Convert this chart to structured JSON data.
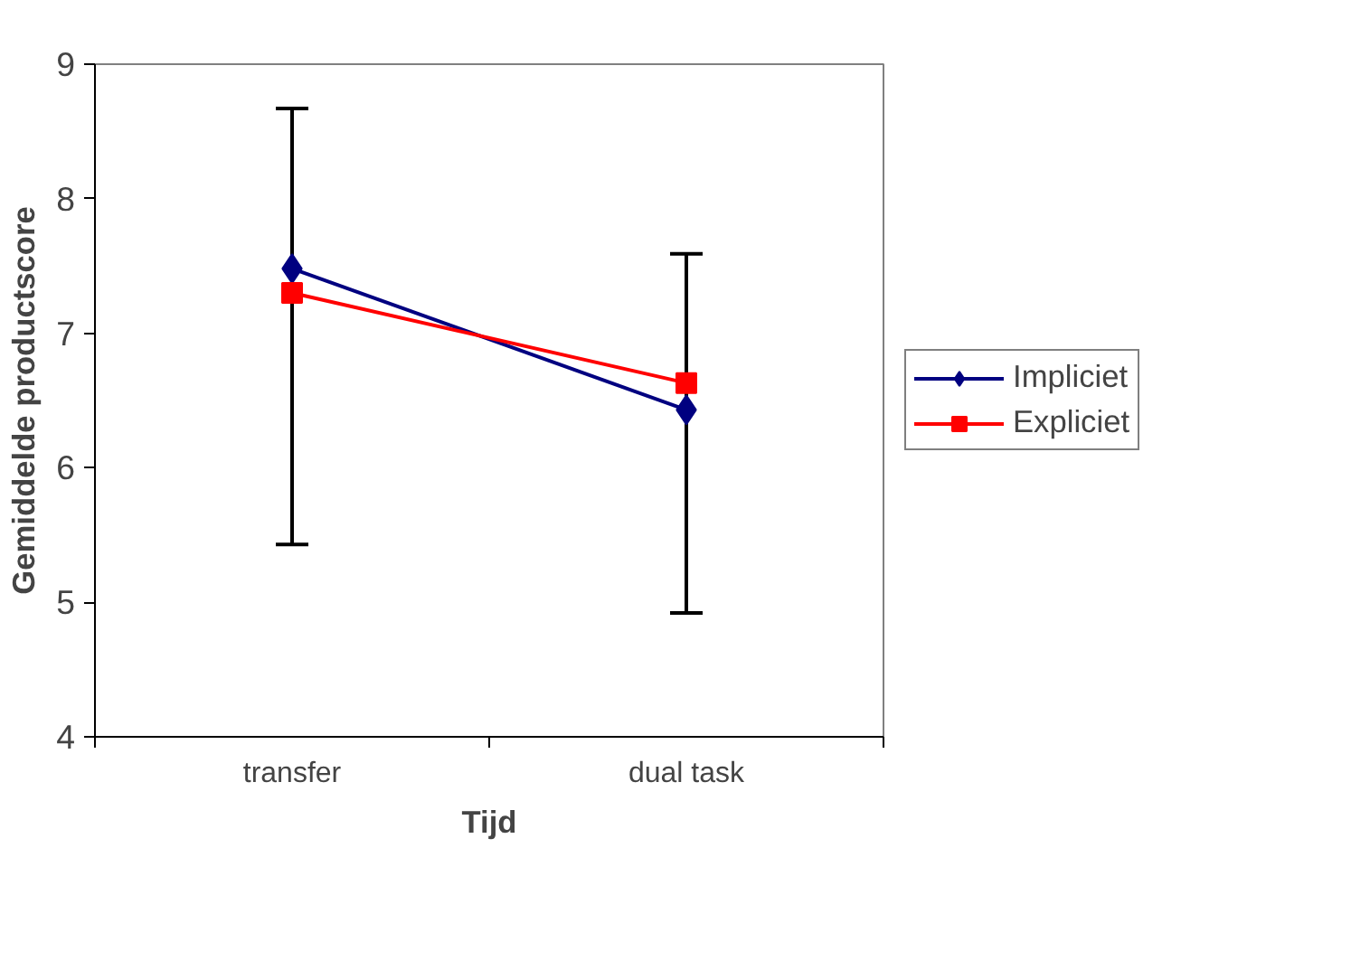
{
  "chart_data": {
    "type": "line",
    "xlabel": "Tijd",
    "ylabel": "Gemiddelde productscore",
    "categories": [
      "transfer",
      "dual task"
    ],
    "series": [
      {
        "name": "Impliciet",
        "color": "#000080",
        "marker": "diamond",
        "values": [
          7.48,
          6.43
        ],
        "errors": [
          [
            5.43,
            8.67
          ],
          [
            4.92,
            7.59
          ]
        ]
      },
      {
        "name": "Expliciet",
        "color": "#ff0000",
        "marker": "square",
        "values": [
          7.3,
          6.63
        ]
      }
    ],
    "ylim": [
      4,
      9
    ],
    "yticks": [
      4,
      5,
      6,
      7,
      8,
      9
    ],
    "grid": false,
    "legend": "right",
    "line_style": "solid"
  }
}
